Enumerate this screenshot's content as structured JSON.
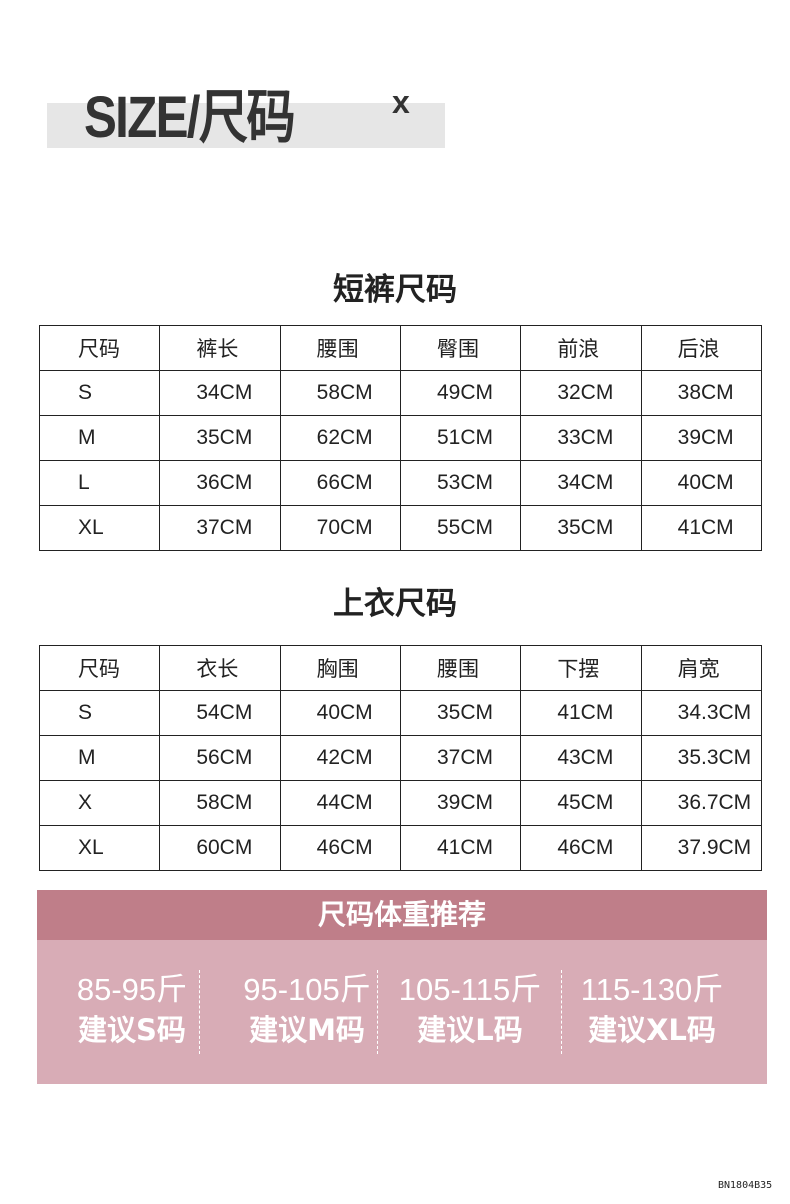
{
  "header": {
    "title": "SIZE/尺码",
    "close_mark": "x"
  },
  "shorts": {
    "title": "短裤尺码",
    "columns": [
      "尺码",
      "裤长",
      "腰围",
      "臀围",
      "前浪",
      "后浪"
    ],
    "rows": [
      [
        "S",
        "34CM",
        "58CM",
        "49CM",
        "32CM",
        "38CM"
      ],
      [
        "M",
        "35CM",
        "62CM",
        "51CM",
        "33CM",
        "39CM"
      ],
      [
        "L",
        "36CM",
        "66CM",
        "53CM",
        "34CM",
        "40CM"
      ],
      [
        "XL",
        "37CM",
        "70CM",
        "55CM",
        "35CM",
        "41CM"
      ]
    ]
  },
  "tops": {
    "title": "上衣尺码",
    "columns": [
      "尺码",
      "衣长",
      "胸围",
      "腰围",
      "下摆",
      "肩宽"
    ],
    "rows": [
      [
        "S",
        "54CM",
        "40CM",
        "35CM",
        "41CM",
        "34.3CM"
      ],
      [
        "M",
        "56CM",
        "42CM",
        "37CM",
        "43CM",
        "35.3CM"
      ],
      [
        "X",
        "58CM",
        "44CM",
        "39CM",
        "45CM",
        "36.7CM"
      ],
      [
        "XL",
        "60CM",
        "46CM",
        "41CM",
        "46CM",
        "37.9CM"
      ]
    ]
  },
  "recommendation": {
    "title": "尺码体重推荐",
    "items": [
      {
        "weight": "85-95斤",
        "size": "建议S码"
      },
      {
        "weight": "95-105斤",
        "size": "建议M码"
      },
      {
        "weight": "105-115斤",
        "size": "建议L码"
      },
      {
        "weight": "115-130斤",
        "size": "建议XL码"
      }
    ],
    "colors": {
      "header": "#bf7e89",
      "body": "#d8acb6"
    }
  },
  "footer": {
    "code": "BN1804B35"
  }
}
